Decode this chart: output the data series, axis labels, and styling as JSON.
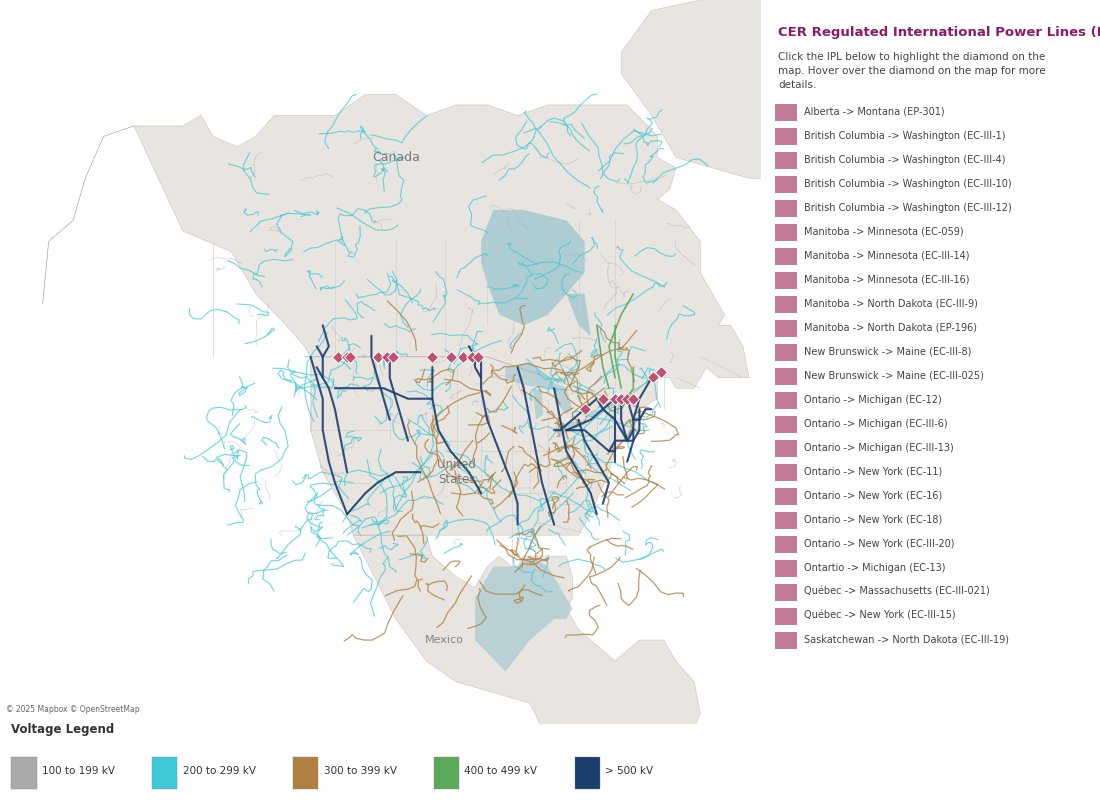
{
  "title": "CER Regulated International Power Lines (IPL)",
  "subtitle": "Click the IPL below to highlight the diamond on the\nmap. Hover over the diamond on the map for more\ndetails.",
  "title_color": "#8B1A6B",
  "subtitle_color": "#444444",
  "map_bg_color": "#aecdd2",
  "land_color": "#e8e4df",
  "canada_color": "#f0ede8",
  "border_color": "#c8c4bf",
  "right_panel_bg": "#ffffff",
  "legend_items": [
    "Alberta -> Montana (EP-301)",
    "British Columbia -> Washington (EC-III-1)",
    "British Columbia -> Washington (EC-III-4)",
    "British Columbia -> Washington (EC-III-10)",
    "British Columbia -> Washington (EC-III-12)",
    "Manitoba -> Minnesota (EC-059)",
    "Manitoba -> Minnesota (EC-III-14)",
    "Manitoba -> Minnesota (EC-III-16)",
    "Manitoba -> North Dakota (EC-III-9)",
    "Manitoba -> North Dakota (EP-196)",
    "New Brunswick -> Maine (EC-III-8)",
    "New Brunswick -> Maine (EC-III-025)",
    "Ontario -> Michigan (EC-12)",
    "Ontario -> Michigan (EC-III-6)",
    "Ontario -> Michigan (EC-III-13)",
    "Ontario -> New York (EC-11)",
    "Ontario -> New York (EC-16)",
    "Ontario -> New York (EC-18)",
    "Ontario -> New York (EC-III-20)",
    "Ontartio -> Michigan (EC-13)",
    "Québec -> Massachusetts (EC-III-021)",
    "Québec -> New York (EC-III-15)",
    "Saskatchewan -> North Dakota (EC-III-19)"
  ],
  "legend_box_color": "#c27a96",
  "voltage_legend": {
    "title": "Voltage Legend",
    "items": [
      {
        "label": "100 to 199 kV",
        "color": "#aaaaaa"
      },
      {
        "label": "200 to 299 kV",
        "color": "#3ec8d8"
      },
      {
        "label": "300 to 399 kV",
        "color": "#b08040"
      },
      {
        "label": "400 to 499 kV",
        "color": "#5aaa5a"
      },
      {
        "label": "> 500 kV",
        "color": "#1a3d6e"
      }
    ]
  },
  "copyright_text": "© 2025 Mapbox © OpenStreetMap",
  "diamond_color": "#c0506e",
  "colors": {
    "gray": "#aaaaaa",
    "cyan": "#3ec8d8",
    "brown": "#b08040",
    "green": "#5aaa5a",
    "navy": "#1a3d6e"
  }
}
